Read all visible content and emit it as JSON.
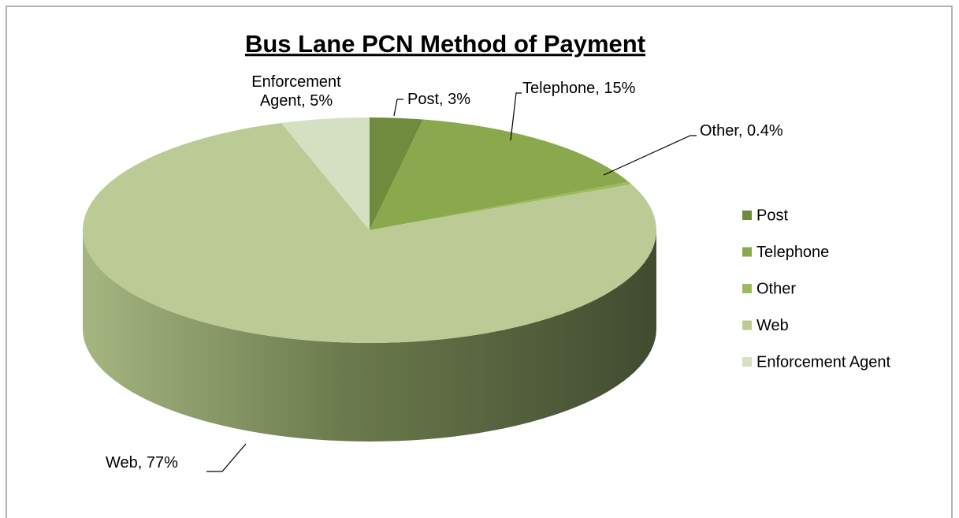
{
  "chart_data": {
    "type": "pie3d",
    "title": "Bus Lane PCN Method of Payment",
    "categories": [
      "Post",
      "Telephone",
      "Other",
      "Web",
      "Enforcement Agent"
    ],
    "values": [
      3,
      15,
      0.4,
      77,
      5
    ],
    "value_labels": [
      "Post, 3%",
      "Telephone, 15%",
      "Other, 0.4%",
      "Web, 77%",
      "Enforcement Agent, 5%"
    ],
    "colors": [
      "#6f8c3e",
      "#8aa84c",
      "#9dbb5c",
      "#bccb95",
      "#d5dfc2"
    ],
    "legend": "right"
  }
}
